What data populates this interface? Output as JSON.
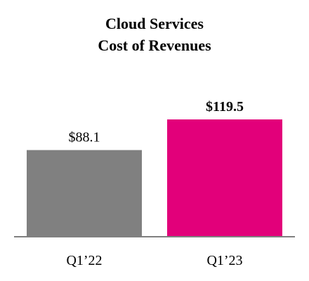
{
  "chart_data": {
    "type": "bar",
    "title": [
      "Cloud Services",
      "Cost of Revenues"
    ],
    "categories": [
      "Q1’22",
      "Q1’23"
    ],
    "values": [
      88.1,
      119.5
    ],
    "data_labels": [
      "$88.1",
      "$119.5"
    ],
    "label_bold": [
      false,
      true
    ],
    "colors": [
      "#808080",
      "#e2007a"
    ],
    "xlabel": "",
    "ylabel": "",
    "ylim": [
      0,
      119.5
    ],
    "grid": false,
    "legend": "none"
  }
}
